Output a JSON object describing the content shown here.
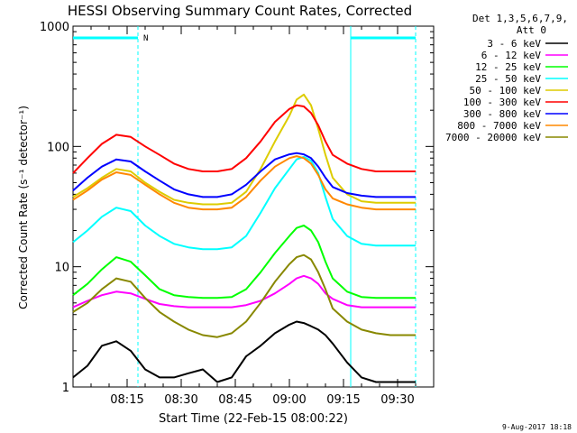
{
  "chart_data": {
    "type": "line",
    "title": "HESSI Observing Summary Count Rates, Corrected",
    "xlabel": "Start Time (22-Feb-15 08:00:22)",
    "ylabel": "Corrected Count Rate (s⁻¹ detector⁻¹)",
    "y_scale": "log",
    "ylim": [
      1,
      1000
    ],
    "xlim_minutes": [
      0,
      100
    ],
    "x_ticks": [
      {
        "minute": 15,
        "label": "08:15"
      },
      {
        "minute": 30,
        "label": "08:30"
      },
      {
        "minute": 45,
        "label": "08:45"
      },
      {
        "minute": 60,
        "label": "09:00"
      },
      {
        "minute": 75,
        "label": "09:15"
      },
      {
        "minute": 90,
        "label": "09:30"
      }
    ],
    "y_ticks": [
      {
        "value": 1,
        "label": "1"
      },
      {
        "value": 10,
        "label": "10"
      },
      {
        "value": 100,
        "label": "100"
      },
      {
        "value": 1000,
        "label": "1000"
      }
    ],
    "legend_header": [
      "Det 1,3,5,6,7,9,",
      "Att 0"
    ],
    "legend_placement": "right",
    "footer_date": "9-Aug-2017 18:18",
    "flag_label": "N",
    "flag_bars": [
      [
        0,
        18
      ],
      [
        77,
        95
      ]
    ],
    "vertical_markers": [
      18,
      77,
      95
    ],
    "x_minutes": [
      0,
      4,
      8,
      12,
      16,
      20,
      24,
      28,
      32,
      36,
      40,
      44,
      48,
      52,
      56,
      60,
      62,
      64,
      66,
      68,
      70,
      72,
      76,
      80,
      84,
      88,
      92,
      95
    ],
    "series": [
      {
        "name": "3 - 6 keV",
        "color": "#000000",
        "values": [
          1.2,
          1.5,
          2.2,
          2.4,
          2.0,
          1.4,
          1.2,
          1.2,
          1.3,
          1.4,
          1.1,
          1.2,
          1.8,
          2.2,
          2.8,
          3.3,
          3.5,
          3.4,
          3.2,
          3.0,
          2.7,
          2.3,
          1.6,
          1.2,
          1.1,
          1.1,
          1.1,
          1.1
        ]
      },
      {
        "name": "6 - 12 keV",
        "color": "#ff00ff",
        "values": [
          4.6,
          5.2,
          5.8,
          6.2,
          6.0,
          5.4,
          4.9,
          4.7,
          4.6,
          4.6,
          4.6,
          4.6,
          4.8,
          5.2,
          6.0,
          7.2,
          8.0,
          8.4,
          8.0,
          7.2,
          6.0,
          5.4,
          4.8,
          4.6,
          4.6,
          4.6,
          4.6,
          4.6
        ]
      },
      {
        "name": "12 - 25 keV",
        "color": "#00ff00",
        "values": [
          5.8,
          7.2,
          9.5,
          12.0,
          11.0,
          8.5,
          6.5,
          5.8,
          5.6,
          5.5,
          5.5,
          5.6,
          6.5,
          9.0,
          13.0,
          18.0,
          21.0,
          22.0,
          20.0,
          16.0,
          11.0,
          8.0,
          6.2,
          5.6,
          5.5,
          5.5,
          5.5,
          5.5
        ]
      },
      {
        "name": "25 - 50 keV",
        "color": "#00ffff",
        "values": [
          16.0,
          20.0,
          26.0,
          31.0,
          29.0,
          22.0,
          18.0,
          15.5,
          14.5,
          14.0,
          14.0,
          14.5,
          18.0,
          28.0,
          45.0,
          65.0,
          78.0,
          82.0,
          76.0,
          60.0,
          38.0,
          25.0,
          18.0,
          15.5,
          15.0,
          15.0,
          15.0,
          15.0
        ]
      },
      {
        "name": "50 - 100 keV",
        "color": "#ddcc00",
        "values": [
          38.0,
          45.0,
          55.0,
          65.0,
          62.0,
          50.0,
          42.0,
          36.0,
          34.0,
          33.0,
          33.0,
          34.0,
          42.0,
          65.0,
          110.0,
          180.0,
          245.0,
          270.0,
          220.0,
          140.0,
          85.0,
          55.0,
          40.0,
          35.0,
          34.0,
          34.0,
          34.0,
          34.0
        ]
      },
      {
        "name": "100 - 300 keV",
        "color": "#ff0000",
        "values": [
          60.0,
          80.0,
          105.0,
          125.0,
          120.0,
          100.0,
          85.0,
          72.0,
          65.0,
          62.0,
          62.0,
          65.0,
          80.0,
          110.0,
          160.0,
          205.0,
          220.0,
          215.0,
          190.0,
          150.0,
          110.0,
          85.0,
          72.0,
          65.0,
          62.0,
          62.0,
          62.0,
          62.0
        ]
      },
      {
        "name": "300 - 800 keV",
        "color": "#0000ff",
        "values": [
          43.0,
          55.0,
          68.0,
          78.0,
          75.0,
          62.0,
          52.0,
          44.0,
          40.0,
          38.0,
          38.0,
          40.0,
          48.0,
          62.0,
          78.0,
          86.0,
          88.0,
          86.0,
          80.0,
          68.0,
          55.0,
          46.0,
          41.0,
          39.0,
          38.0,
          38.0,
          38.0,
          38.0
        ]
      },
      {
        "name": "800 - 7000 keV",
        "color": "#ff8800",
        "values": [
          36.0,
          43.0,
          53.0,
          61.0,
          58.0,
          48.0,
          40.0,
          34.0,
          31.0,
          30.0,
          30.0,
          31.0,
          38.0,
          52.0,
          68.0,
          80.0,
          83.0,
          80.0,
          72.0,
          58.0,
          44.0,
          37.0,
          33.0,
          31.0,
          30.0,
          30.0,
          30.0,
          30.0
        ]
      },
      {
        "name": "7000 - 20000 keV",
        "color": "#888800",
        "values": [
          4.2,
          5.0,
          6.5,
          8.0,
          7.5,
          5.5,
          4.2,
          3.5,
          3.0,
          2.7,
          2.6,
          2.8,
          3.5,
          5.0,
          7.5,
          10.5,
          12.0,
          12.5,
          11.5,
          9.0,
          6.5,
          4.5,
          3.5,
          3.0,
          2.8,
          2.7,
          2.7,
          2.7
        ]
      }
    ]
  }
}
